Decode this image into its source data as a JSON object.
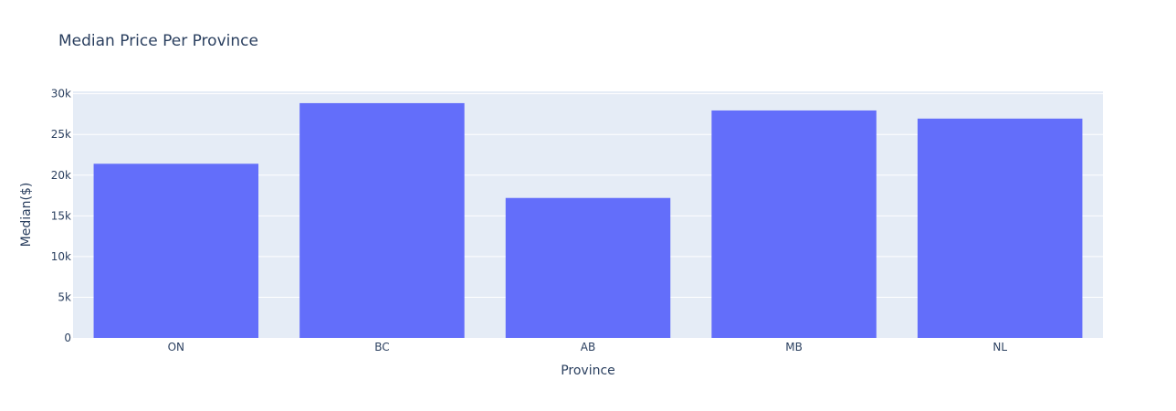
{
  "chart_data": {
    "type": "bar",
    "title": "Median Price Per Province",
    "xlabel": "Province",
    "ylabel": "Median($)",
    "categories": [
      "ON",
      "BC",
      "AB",
      "MB",
      "NL"
    ],
    "values": [
      21400,
      28850,
      17200,
      27950,
      26950
    ],
    "ylim": [
      0,
      30300
    ],
    "yticks": [
      0,
      5000,
      10000,
      15000,
      20000,
      25000,
      30000
    ],
    "ytick_labels": [
      "0",
      "5k",
      "10k",
      "15k",
      "20k",
      "25k",
      "30k"
    ],
    "grid": true,
    "legend": false,
    "colors": {
      "bar": "#636efa",
      "plot_background": "#e5ecf6",
      "grid": "#ffffff",
      "text": "#2a3f5f"
    }
  }
}
